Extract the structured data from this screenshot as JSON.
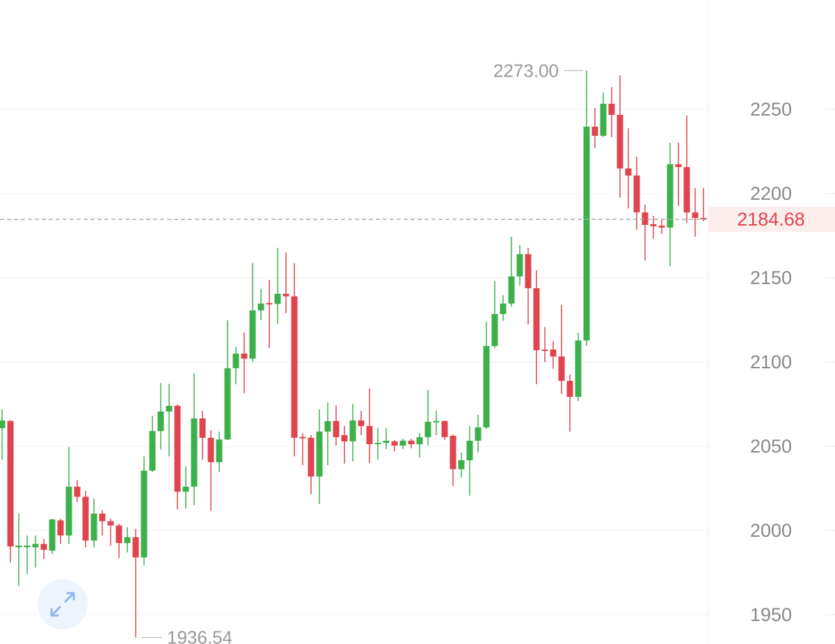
{
  "chart_data": {
    "type": "candlestick",
    "open": [
      2060.7,
      2065,
      1990,
      1990,
      1990,
      1992,
      1988,
      2006,
      1997,
      2026,
      2020,
      1994,
      2010,
      2005.5,
      2003,
      1992.5,
      1996,
      1984,
      2035.5,
      2059,
      2070.6,
      2074,
      2023,
      2026,
      2066.5,
      2055,
      2040.5,
      2054,
      2096.3,
      2105,
      2102,
      2130.6,
      2135,
      2134.5,
      2140.5,
      2139,
      2055.5,
      2055,
      2032,
      2058.7,
      2065,
      2056.6,
      2052.9,
      2065.3,
      2062,
      2051.2,
      2052,
      2052.9,
      2050.4,
      2053.3,
      2051.2,
      2055.4,
      2064.5,
      2065,
      2056.2,
      2036.4,
      2041.7,
      2053.3,
      2061.2,
      2109.5,
      2128.5,
      2134.7,
      2150.8,
      2164,
      2143.8,
      2107.4,
      2107.4,
      2103.3,
      2088.8,
      2079.3,
      2112.8,
      2239.7,
      2234.3,
      2253.3,
      2246.7,
      2214.9,
      2210.7,
      2188.8,
      2181.8,
      2181,
      2179.8,
      2217.4,
      2215.7,
      2188.8,
      2185.5
    ],
    "high": [
      2071.9,
      2065.5,
      2010,
      1997,
      1997,
      1995,
      2007,
      2007,
      2049.5,
      2030,
      2023.5,
      2019,
      2012,
      2007,
      2004,
      2002,
      2001,
      2044,
      2068,
      2087.5,
      2087,
      2074.8,
      2038,
      2093.4,
      2071,
      2059.5,
      2058.7,
      2124.8,
      2109,
      2117.4,
      2158.7,
      2143.4,
      2148.8,
      2167.8,
      2165,
      2158.7,
      2057.8,
      2056.6,
      2071.9,
      2076,
      2074.4,
      2062,
      2075.2,
      2071,
      2084.3,
      2061,
      2060.7,
      2053.7,
      2054.5,
      2054.5,
      2057.9,
      2083.5,
      2071,
      2065.3,
      2057,
      2046.3,
      2062,
      2068.6,
      2124,
      2148,
      2139.7,
      2174.4,
      2169.4,
      2167.8,
      2154.5,
      2120.7,
      2112.4,
      2133.9,
      2092.6,
      2117.4,
      2273,
      2250.8,
      2260,
      2263.2,
      2270.2,
      2238.8,
      2221.9,
      2193.4,
      2186.8,
      2185,
      2230.2,
      2230.2,
      2246.3,
      2203.3,
      2203.3
    ],
    "low": [
      2042,
      1981,
      1967,
      1974,
      1978,
      1983,
      1986,
      1992,
      1992,
      2017,
      1990,
      1990,
      1997,
      1991,
      1983.5,
      1987,
      1936.54,
      1979.5,
      2034.7,
      2048,
      2044,
      2012.4,
      2013,
      2015,
      2042,
      2011.6,
      2034.7,
      2053.7,
      2086.8,
      2081.4,
      2100,
      2124.8,
      2108.3,
      2122.7,
      2129,
      2044,
      2038.8,
      2021.5,
      2015.7,
      2038.8,
      2050.4,
      2039.7,
      2041,
      2056.6,
      2040,
      2042,
      2048.3,
      2047,
      2048.3,
      2048.7,
      2043.4,
      2050.4,
      2056.6,
      2053.7,
      2026.4,
      2031.4,
      2020.7,
      2046.3,
      2060.3,
      2108.3,
      2124.4,
      2133,
      2145.5,
      2122.3,
      2086.8,
      2100,
      2095.9,
      2081,
      2058.7,
      2076.9,
      2109.5,
      2226.9,
      2233.5,
      2233.5,
      2197.5,
      2191,
      2178.5,
      2160.3,
      2173.1,
      2176,
      2157,
      2192.6,
      2182.6,
      2174.4,
      2183.5
    ],
    "close": [
      2065.3,
      1990.5,
      1991,
      1991,
      1992,
      1988.5,
      2006.5,
      1997,
      2026,
      2020,
      1994,
      2010,
      2005.5,
      2003,
      1992.5,
      1996,
      1984,
      2035.5,
      2059,
      2070.6,
      2074,
      2023,
      2026,
      2066.5,
      2055,
      2040.5,
      2054,
      2096.3,
      2105,
      2102,
      2130.6,
      2134.7,
      2134.5,
      2140.5,
      2139,
      2055,
      2055,
      2032,
      2058.7,
      2064.9,
      2055.4,
      2052.9,
      2065.3,
      2062,
      2051.2,
      2052,
      2053.3,
      2050.4,
      2053.3,
      2051.2,
      2055.4,
      2064.5,
      2065,
      2055.4,
      2036.4,
      2041.7,
      2053.3,
      2061.2,
      2109.5,
      2128.5,
      2134.7,
      2150.8,
      2164,
      2143.8,
      2107,
      2106.6,
      2103.3,
      2088.8,
      2079.3,
      2112.8,
      2239.7,
      2234.3,
      2253.3,
      2246.7,
      2214.9,
      2210.7,
      2188.8,
      2181.4,
      2180.6,
      2179.8,
      2217.4,
      2215.7,
      2188.8,
      2185.5,
      2184.68
    ],
    "up_color": "#3cb04a",
    "down_color": "#e0444f",
    "ylim": [
      1932.6,
      2314.9
    ],
    "yticks": [
      1950,
      2000,
      2050,
      2100,
      2150,
      2200,
      2250
    ],
    "grid": true,
    "last_price": 2184.68,
    "annotations": [
      {
        "value": 2273,
        "label": "2273.00"
      },
      {
        "value": 1936.54,
        "label": "1936.54"
      }
    ]
  }
}
